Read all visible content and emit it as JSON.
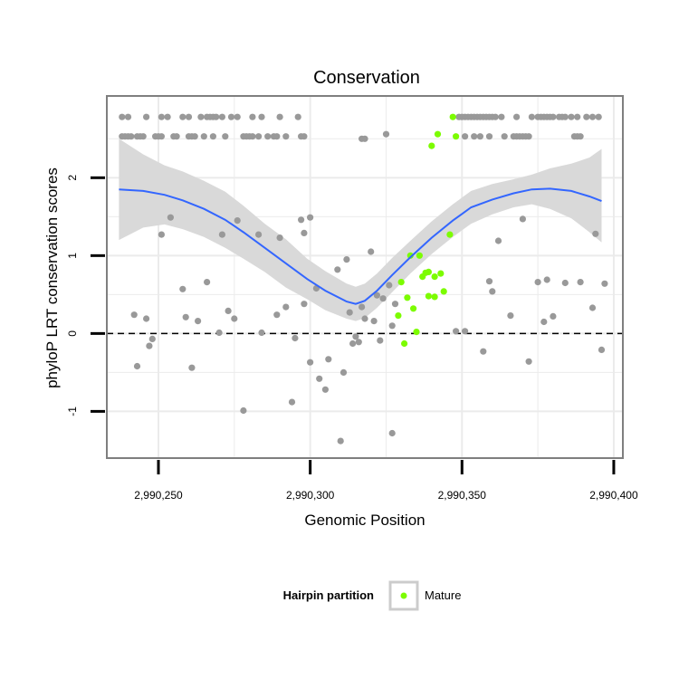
{
  "chart_data": {
    "type": "scatter",
    "title": "Conservation",
    "xlabel": "Genomic Position",
    "ylabel": "phyloP LRT conservation scores",
    "xlim": [
      2990233,
      2990403
    ],
    "ylim": [
      -1.6,
      3.05
    ],
    "x_ticks": [
      2990250,
      2990300,
      2990350,
      2990400
    ],
    "x_tick_labels": [
      "2,990,250",
      "2,990,300",
      "2,990,350",
      "2,990,400"
    ],
    "y_ticks": [
      -1,
      0,
      1,
      2
    ],
    "y_tick_labels": [
      "-1",
      "0",
      "1",
      "2"
    ],
    "reference_line": {
      "y": 0,
      "style": "dashed"
    },
    "grid": true,
    "legend": {
      "title": "Hairpin partition",
      "position": "bottom"
    },
    "colors": {
      "other": "#999999",
      "mature": "#7cfc00",
      "smooth": "#3366ff",
      "ribbon": "#d9d9d9",
      "panel_border": "#7f7f7f",
      "grid": "#ebebeb"
    },
    "series": [
      {
        "name": "",
        "color": "#999999",
        "points": [
          [
            2990238,
            2.78
          ],
          [
            2990240,
            2.78
          ],
          [
            2990246,
            2.78
          ],
          [
            2990251,
            2.78
          ],
          [
            2990253,
            2.78
          ],
          [
            2990258,
            2.78
          ],
          [
            2990260,
            2.78
          ],
          [
            2990264,
            2.78
          ],
          [
            2990266,
            2.78
          ],
          [
            2990267,
            2.78
          ],
          [
            2990268,
            2.78
          ],
          [
            2990269,
            2.78
          ],
          [
            2990271,
            2.78
          ],
          [
            2990274,
            2.78
          ],
          [
            2990276,
            2.78
          ],
          [
            2990281,
            2.78
          ],
          [
            2990284,
            2.78
          ],
          [
            2990290,
            2.78
          ],
          [
            2990296,
            2.78
          ],
          [
            2990238,
            2.53
          ],
          [
            2990239,
            2.53
          ],
          [
            2990240,
            2.53
          ],
          [
            2990241,
            2.53
          ],
          [
            2990243,
            2.53
          ],
          [
            2990244,
            2.53
          ],
          [
            2990245,
            2.53
          ],
          [
            2990249,
            2.53
          ],
          [
            2990250,
            2.53
          ],
          [
            2990251,
            2.53
          ],
          [
            2990255,
            2.53
          ],
          [
            2990256,
            2.53
          ],
          [
            2990260,
            2.53
          ],
          [
            2990261,
            2.53
          ],
          [
            2990262,
            2.53
          ],
          [
            2990265,
            2.53
          ],
          [
            2990268,
            2.53
          ],
          [
            2990272,
            2.53
          ],
          [
            2990278,
            2.53
          ],
          [
            2990279,
            2.53
          ],
          [
            2990280,
            2.53
          ],
          [
            2990281,
            2.53
          ],
          [
            2990283,
            2.53
          ],
          [
            2990286,
            2.53
          ],
          [
            2990288,
            2.53
          ],
          [
            2990289,
            2.53
          ],
          [
            2990292,
            2.53
          ],
          [
            2990297,
            2.53
          ],
          [
            2990298,
            2.53
          ],
          [
            2990317,
            2.5
          ],
          [
            2990318,
            2.5
          ],
          [
            2990325,
            2.56
          ],
          [
            2990349,
            2.78
          ],
          [
            2990350,
            2.78
          ],
          [
            2990351,
            2.78
          ],
          [
            2990352,
            2.78
          ],
          [
            2990353,
            2.78
          ],
          [
            2990354,
            2.78
          ],
          [
            2990355,
            2.78
          ],
          [
            2990356,
            2.78
          ],
          [
            2990357,
            2.78
          ],
          [
            2990358,
            2.78
          ],
          [
            2990359,
            2.78
          ],
          [
            2990360,
            2.78
          ],
          [
            2990361,
            2.78
          ],
          [
            2990363,
            2.78
          ],
          [
            2990368,
            2.78
          ],
          [
            2990373,
            2.78
          ],
          [
            2990375,
            2.78
          ],
          [
            2990376,
            2.78
          ],
          [
            2990377,
            2.78
          ],
          [
            2990378,
            2.78
          ],
          [
            2990379,
            2.78
          ],
          [
            2990380,
            2.78
          ],
          [
            2990382,
            2.78
          ],
          [
            2990383,
            2.78
          ],
          [
            2990384,
            2.78
          ],
          [
            2990386,
            2.78
          ],
          [
            2990388,
            2.78
          ],
          [
            2990391,
            2.78
          ],
          [
            2990393,
            2.78
          ],
          [
            2990395,
            2.78
          ],
          [
            2990351,
            2.53
          ],
          [
            2990354,
            2.53
          ],
          [
            2990356,
            2.53
          ],
          [
            2990359,
            2.53
          ],
          [
            2990364,
            2.53
          ],
          [
            2990367,
            2.53
          ],
          [
            2990368,
            2.53
          ],
          [
            2990369,
            2.53
          ],
          [
            2990370,
            2.53
          ],
          [
            2990371,
            2.53
          ],
          [
            2990372,
            2.53
          ],
          [
            2990387,
            2.53
          ],
          [
            2990388,
            2.53
          ],
          [
            2990389,
            2.53
          ],
          [
            2990242,
            0.24
          ],
          [
            2990243,
            -0.42
          ],
          [
            2990246,
            0.19
          ],
          [
            2990247,
            -0.16
          ],
          [
            2990248,
            -0.07
          ],
          [
            2990251,
            1.27
          ],
          [
            2990254,
            1.49
          ],
          [
            2990258,
            0.57
          ],
          [
            2990259,
            0.21
          ],
          [
            2990261,
            -0.44
          ],
          [
            2990263,
            0.16
          ],
          [
            2990266,
            0.66
          ],
          [
            2990270,
            0.01
          ],
          [
            2990271,
            1.27
          ],
          [
            2990273,
            0.29
          ],
          [
            2990275,
            0.19
          ],
          [
            2990276,
            1.45
          ],
          [
            2990278,
            -0.99
          ],
          [
            2990283,
            1.27
          ],
          [
            2990284,
            0.01
          ],
          [
            2990289,
            0.24
          ],
          [
            2990290,
            1.23
          ],
          [
            2990292,
            0.34
          ],
          [
            2990294,
            -0.88
          ],
          [
            2990295,
            -0.06
          ],
          [
            2990297,
            1.46
          ],
          [
            2990298,
            1.29
          ],
          [
            2990298,
            0.38
          ],
          [
            2990300,
            1.49
          ],
          [
            2990300,
            -0.37
          ],
          [
            2990302,
            0.58
          ],
          [
            2990303,
            -0.58
          ],
          [
            2990305,
            -0.72
          ],
          [
            2990306,
            -0.33
          ],
          [
            2990309,
            0.82
          ],
          [
            2990310,
            -1.38
          ],
          [
            2990311,
            -0.5
          ],
          [
            2990312,
            0.95
          ],
          [
            2990313,
            0.27
          ],
          [
            2990314,
            -0.13
          ],
          [
            2990315,
            -0.04
          ],
          [
            2990316,
            -0.11
          ],
          [
            2990317,
            0.34
          ],
          [
            2990318,
            0.19
          ],
          [
            2990320,
            1.05
          ],
          [
            2990321,
            0.16
          ],
          [
            2990322,
            0.49
          ],
          [
            2990323,
            -0.09
          ],
          [
            2990324,
            0.45
          ],
          [
            2990326,
            0.62
          ],
          [
            2990327,
            0.1
          ],
          [
            2990327,
            -1.28
          ],
          [
            2990328,
            0.38
          ],
          [
            2990348,
            0.03
          ],
          [
            2990351,
            0.03
          ],
          [
            2990357,
            -0.23
          ],
          [
            2990359,
            0.67
          ],
          [
            2990360,
            0.54
          ],
          [
            2990362,
            1.19
          ],
          [
            2990366,
            0.23
          ],
          [
            2990370,
            1.47
          ],
          [
            2990372,
            -0.36
          ],
          [
            2990375,
            0.66
          ],
          [
            2990377,
            0.15
          ],
          [
            2990378,
            0.69
          ],
          [
            2990380,
            0.22
          ],
          [
            2990384,
            0.65
          ],
          [
            2990389,
            0.66
          ],
          [
            2990393,
            0.33
          ],
          [
            2990394,
            1.28
          ],
          [
            2990396,
            -0.21
          ],
          [
            2990397,
            0.64
          ]
        ]
      },
      {
        "name": "Mature",
        "color": "#7cfc00",
        "points": [
          [
            2990347,
            2.78
          ],
          [
            2990348,
            2.53
          ],
          [
            2990342,
            2.56
          ],
          [
            2990340,
            2.41
          ],
          [
            2990346,
            1.27
          ],
          [
            2990333,
            1.0
          ],
          [
            2990336,
            1.0
          ],
          [
            2990337,
            0.73
          ],
          [
            2990338,
            0.78
          ],
          [
            2990339,
            0.79
          ],
          [
            2990343,
            0.77
          ],
          [
            2990341,
            0.73
          ],
          [
            2990339,
            0.48
          ],
          [
            2990341,
            0.47
          ],
          [
            2990344,
            0.54
          ],
          [
            2990332,
            0.46
          ],
          [
            2990334,
            0.32
          ],
          [
            2990330,
            0.66
          ],
          [
            2990329,
            0.23
          ],
          [
            2990335,
            0.02
          ],
          [
            2990331,
            -0.13
          ]
        ]
      }
    ],
    "smooth": {
      "x": [
        2990237,
        2990245,
        2990252,
        2990258,
        2990265,
        2990272,
        2990278,
        2990285,
        2990292,
        2990299,
        2990305,
        2990312,
        2990315,
        2990318,
        2990322,
        2990327,
        2990333,
        2990340,
        2990347,
        2990353,
        2990360,
        2990367,
        2990373,
        2990379,
        2990386,
        2990392,
        2990396
      ],
      "y": [
        1.85,
        1.83,
        1.78,
        1.71,
        1.6,
        1.46,
        1.3,
        1.1,
        0.9,
        0.7,
        0.55,
        0.41,
        0.38,
        0.42,
        0.55,
        0.75,
        0.98,
        1.23,
        1.45,
        1.62,
        1.72,
        1.8,
        1.85,
        1.86,
        1.83,
        1.76,
        1.7
      ],
      "lower": [
        1.2,
        1.36,
        1.4,
        1.34,
        1.24,
        1.1,
        0.96,
        0.79,
        0.59,
        0.44,
        0.3,
        0.19,
        0.16,
        0.2,
        0.33,
        0.53,
        0.77,
        1.02,
        1.24,
        1.41,
        1.53,
        1.62,
        1.66,
        1.6,
        1.48,
        1.3,
        1.17
      ],
      "upper": [
        2.5,
        2.3,
        2.16,
        2.08,
        1.96,
        1.82,
        1.64,
        1.41,
        1.21,
        0.96,
        0.8,
        0.64,
        0.6,
        0.64,
        0.77,
        0.97,
        1.19,
        1.44,
        1.66,
        1.83,
        1.92,
        1.98,
        2.04,
        2.12,
        2.18,
        2.26,
        2.37
      ]
    }
  }
}
